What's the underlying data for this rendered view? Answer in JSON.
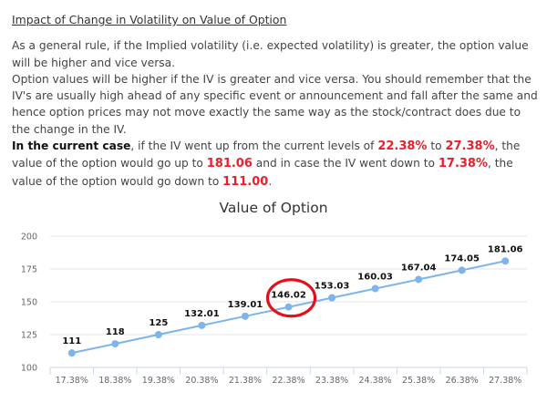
{
  "article": {
    "heading": "Impact of Change in Volatility on Value of Option",
    "para1": "As a general rule, if the Implied volatility (i.e. expected volatility) is greater, the option value will be higher and vice versa.",
    "para2": "Option values will be higher if the IV is greater and vice versa. You should remember that the IV's are usually high ahead of any specific event or announcement and fall after the same and hence option prices may not move exactly the same way as the stock/contract does due to the change in the IV.",
    "current_case": {
      "lead": "In the current case",
      "t1": ", if the IV went up from the current levels of ",
      "iv_current": "22.38%",
      "t2": " to ",
      "iv_up": "27.38%",
      "t3": ", the value of the option would go up to ",
      "value_up": "181.06",
      "t4": " and in case the IV went down to ",
      "iv_down": "17.38%",
      "t5": ", the value of the option would go down to ",
      "value_down": "111.00",
      "t6": "."
    }
  },
  "colors": {
    "highlight": "#e8202a",
    "series": "#7cb5ec",
    "circle_annotation": "#e3101c",
    "grid": "#e6e6e6",
    "axis": "#ccd6eb"
  },
  "chart_data": {
    "type": "line",
    "title": "Value of Option",
    "xlabel": "",
    "ylabel": "",
    "categories": [
      "17.38%",
      "18.38%",
      "19.38%",
      "20.38%",
      "21.38%",
      "22.38%",
      "23.38%",
      "24.38%",
      "25.38%",
      "26.38%",
      "27.38%"
    ],
    "series": [
      {
        "name": "Value of Option",
        "values": [
          111,
          118,
          125,
          132.01,
          139.01,
          146.02,
          153.03,
          160.03,
          167.04,
          174.05,
          181.06
        ],
        "labels": [
          "111",
          "118",
          "125",
          "132.01",
          "139.01",
          "146.02",
          "153.03",
          "160.03",
          "167.04",
          "174.05",
          "181.06"
        ]
      }
    ],
    "ylim": [
      100,
      200
    ],
    "yticks": [
      "100",
      "125",
      "150",
      "175",
      "200"
    ],
    "grid": true,
    "legend": "none",
    "annotation": {
      "type": "circle",
      "target_category": "22.38%",
      "target_value": "146.02"
    }
  }
}
